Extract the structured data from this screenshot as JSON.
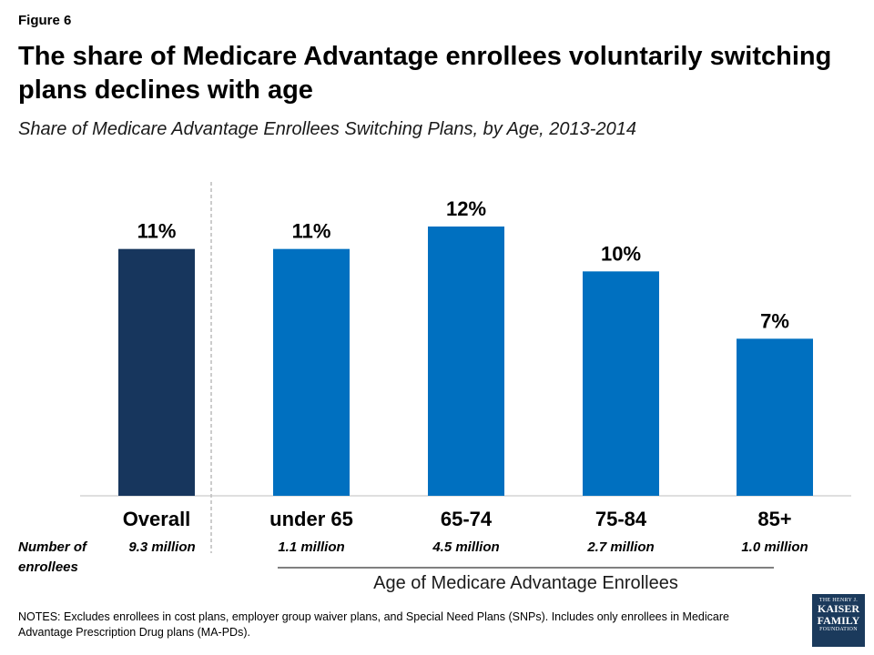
{
  "figure_label": "Figure 6",
  "title": "The share of Medicare Advantage enrollees voluntarily switching plans declines with age",
  "subtitle": "Share of Medicare Advantage Enrollees Switching Plans, by Age, 2013-2014",
  "row_label": "Number of enrollees",
  "axis_title": "Age of Medicare Advantage Enrollees",
  "notes": "NOTES: Excludes enrollees in cost plans, employer group waiver plans, and Special Need Plans (SNPs).  Includes only enrollees in Medicare Advantage Prescription Drug plans (MA-PDs).",
  "logo": {
    "line1": "THE HENRY J.",
    "line2": "KAISER",
    "line3": "FAMILY",
    "line4": "FOUNDATION"
  },
  "colors": {
    "overall": "#17365d",
    "age": "#0070c0"
  },
  "chart_data": {
    "type": "bar",
    "title": "Share of Medicare Advantage Enrollees Switching Plans, by Age, 2013-2014",
    "xlabel": "Age of Medicare Advantage Enrollees",
    "ylabel": "",
    "categories": [
      "Overall",
      "under 65",
      "65-74",
      "75-84",
      "85+"
    ],
    "values": [
      11,
      11,
      12,
      10,
      7
    ],
    "value_labels": [
      "11%",
      "11%",
      "12%",
      "10%",
      "7%"
    ],
    "enrollees": [
      "9.3 million",
      "1.1 million",
      "4.5 million",
      "2.7 million",
      "1.0 million"
    ],
    "ylim": [
      0,
      12
    ],
    "grid": false,
    "legend": "none"
  }
}
